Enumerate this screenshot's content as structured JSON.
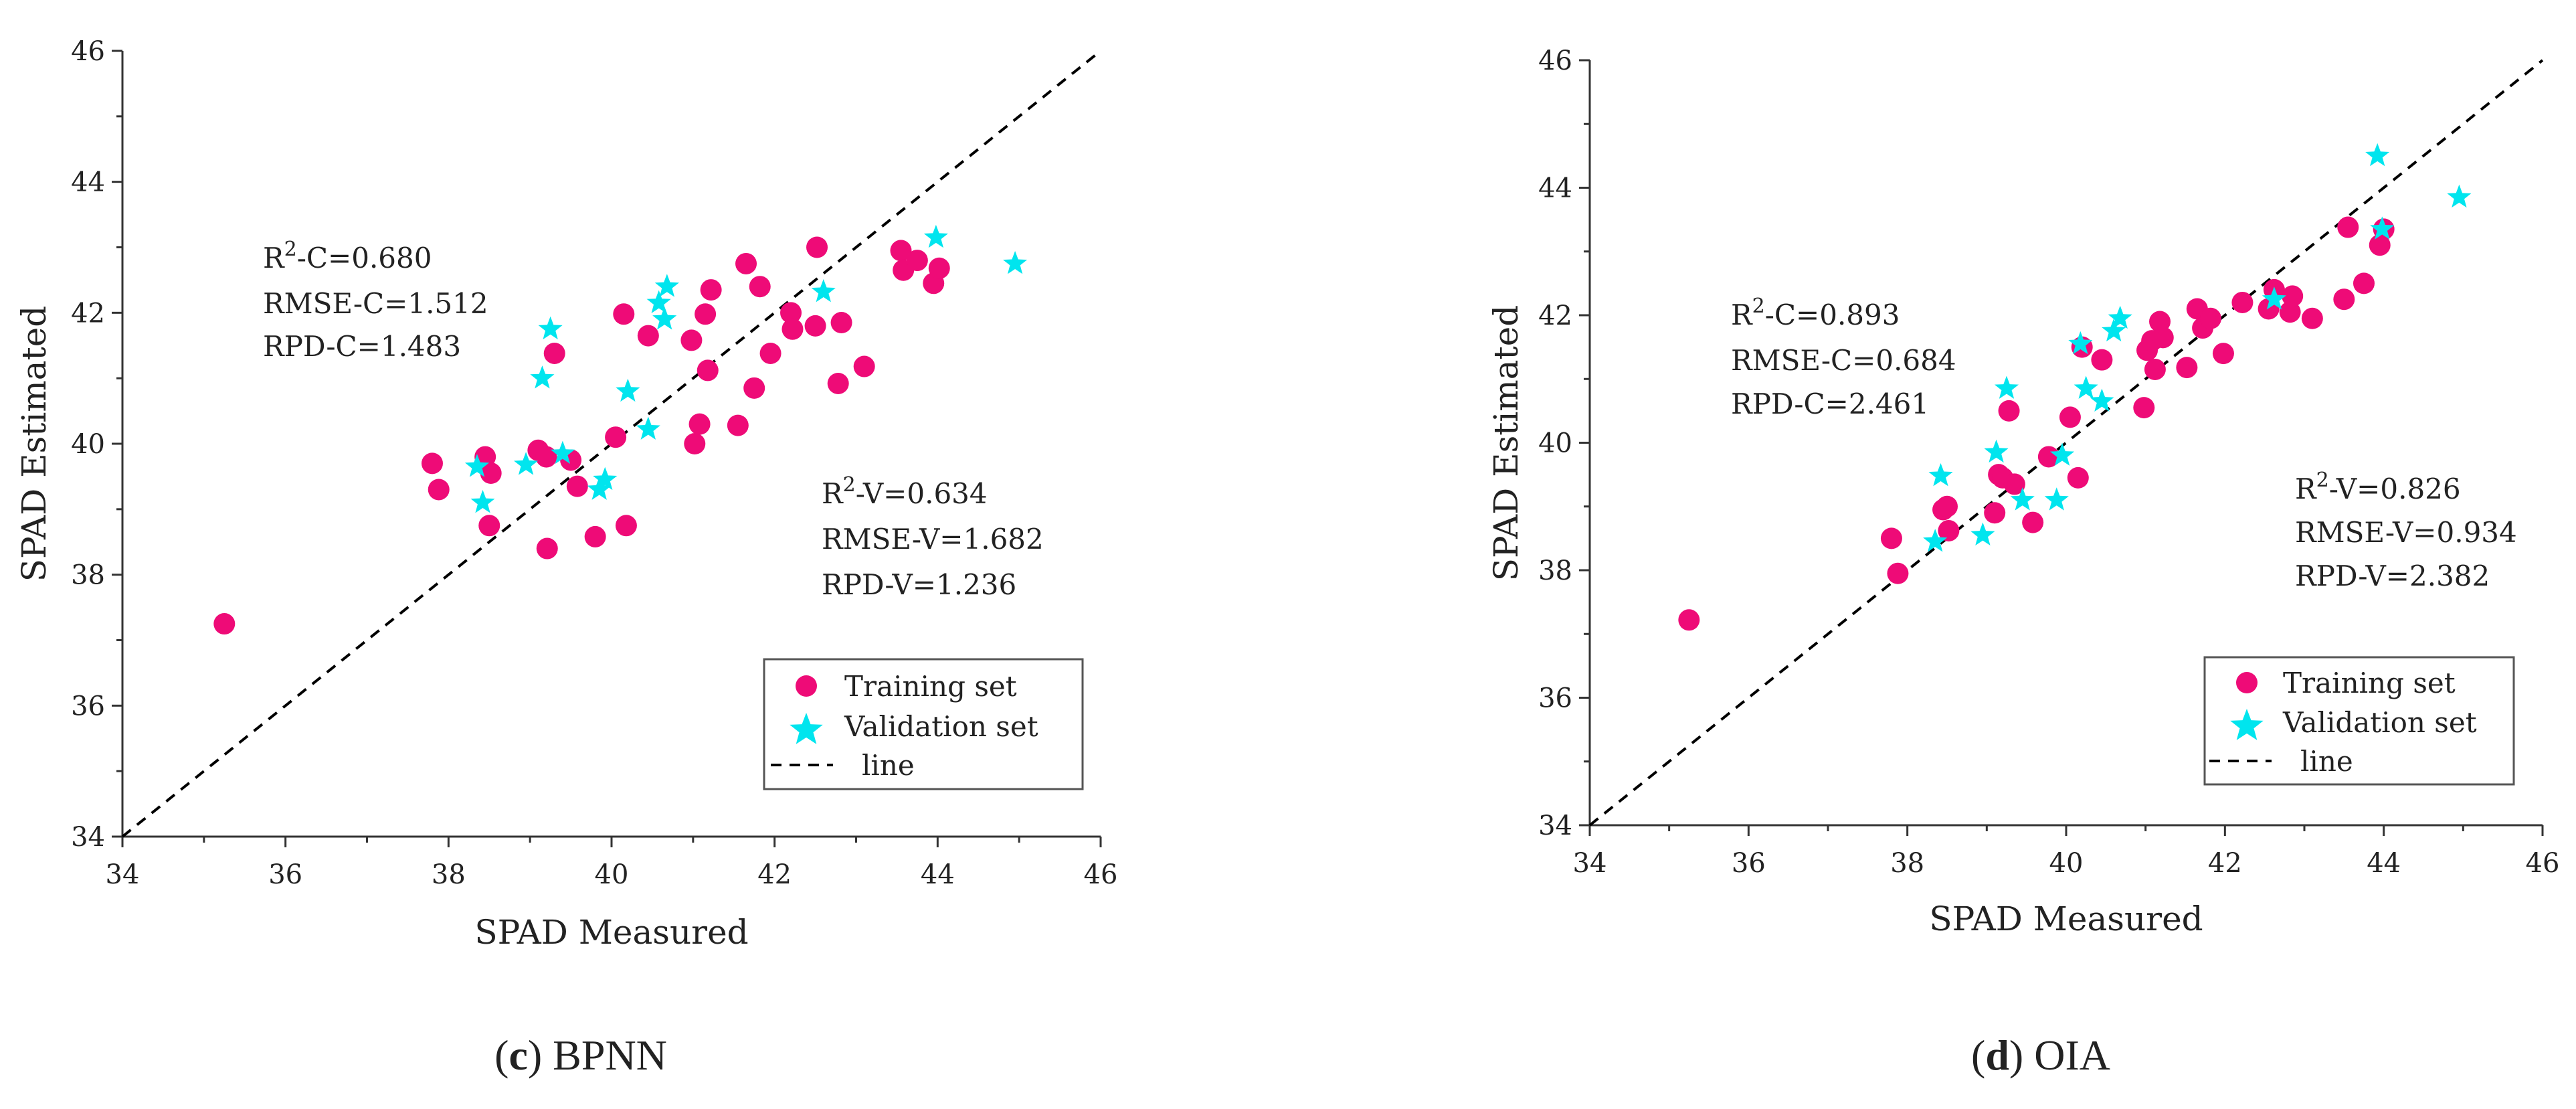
{
  "colors": {
    "training": "#ee0b77",
    "validation": "#00e5ee",
    "line": "#000000",
    "axis": "#333333"
  },
  "chart_data": [
    {
      "type": "scatter",
      "panel_letter": "c",
      "caption": "BPNN",
      "xlabel": "SPAD Measured",
      "ylabel": "SPAD Estimated",
      "xlim": [
        34,
        46
      ],
      "ylim": [
        34,
        46
      ],
      "x_ticks": [
        "34",
        "36",
        "38",
        "40",
        "42",
        "44",
        "46"
      ],
      "y_ticks": [
        "34",
        "36",
        "38",
        "40",
        "42",
        "44",
        "46"
      ],
      "stats_c": {
        "r2_prefix": "R",
        "r2_sup": "2",
        "r2_rest": "-C=0.680",
        "rmse": "RMSE-C=1.512",
        "rpd": "RPD-C=1.483"
      },
      "stats_v": {
        "r2_prefix": "R",
        "r2_sup": "2",
        "r2_rest": "-V=0.634",
        "rmse": "RMSE-V=1.682",
        "rpd": "RPD-V=1.236"
      },
      "legend": {
        "training": "Training set",
        "validation": "Validation set",
        "line": "line",
        "position": "bottom-right"
      },
      "series": [
        {
          "name": "Training set",
          "x": [
            35.25,
            37.8,
            37.88,
            38.45,
            38.5,
            38.52,
            39.1,
            39.2,
            39.21,
            39.3,
            39.5,
            39.58,
            39.8,
            40.05,
            40.15,
            40.18,
            40.45,
            40.98,
            41.02,
            41.08,
            41.15,
            41.18,
            41.22,
            41.55,
            41.65,
            41.75,
            41.82,
            41.95,
            42.2,
            42.22,
            42.5,
            42.52,
            42.78,
            42.82,
            43.1,
            43.55,
            43.58,
            43.75,
            43.95,
            44.02
          ],
          "y": [
            37.25,
            39.7,
            39.3,
            39.8,
            38.75,
            39.55,
            39.9,
            39.8,
            38.4,
            41.38,
            39.75,
            39.35,
            38.58,
            40.1,
            41.98,
            38.75,
            41.65,
            41.58,
            40.0,
            40.3,
            41.98,
            41.12,
            42.35,
            40.28,
            42.75,
            40.85,
            42.4,
            41.38,
            42.0,
            41.75,
            41.8,
            43.0,
            40.92,
            41.85,
            41.18,
            42.95,
            42.65,
            42.8,
            42.45,
            42.68
          ]
        },
        {
          "name": "Validation set",
          "x": [
            38.35,
            38.42,
            38.95,
            39.15,
            39.25,
            39.4,
            39.85,
            39.92,
            40.2,
            40.45,
            40.58,
            40.65,
            40.68,
            42.6,
            43.98,
            44.95
          ],
          "y": [
            39.65,
            39.1,
            39.68,
            41.0,
            41.75,
            39.85,
            39.3,
            39.45,
            40.8,
            40.22,
            42.15,
            41.9,
            42.4,
            42.32,
            43.15,
            42.75
          ]
        }
      ]
    },
    {
      "type": "scatter",
      "panel_letter": "d",
      "caption": "OIA",
      "xlabel": "SPAD Measured",
      "ylabel": "SPAD Estimated",
      "xlim": [
        34,
        46
      ],
      "ylim": [
        34,
        46
      ],
      "x_ticks": [
        "34",
        "36",
        "38",
        "40",
        "42",
        "44",
        "46"
      ],
      "y_ticks": [
        "34",
        "36",
        "38",
        "40",
        "42",
        "44",
        "46"
      ],
      "stats_c": {
        "r2_prefix": "R",
        "r2_sup": "2",
        "r2_rest": "-C=0.893",
        "rmse": "RMSE-C=0.684",
        "rpd": "RPD-C=2.461"
      },
      "stats_v": {
        "r2_prefix": "R",
        "r2_sup": "2",
        "r2_rest": "-V=0.826",
        "rmse": "RMSE-V=0.934",
        "rpd": "RPD-V=2.382"
      },
      "legend": {
        "training": "Training set",
        "validation": "Validation set",
        "line": "line",
        "position": "bottom-right"
      },
      "series": [
        {
          "name": "Training set",
          "x": [
            35.25,
            37.8,
            37.88,
            38.45,
            38.5,
            38.52,
            39.1,
            39.15,
            39.2,
            39.28,
            39.35,
            39.58,
            39.78,
            40.05,
            40.15,
            40.2,
            40.45,
            40.98,
            41.02,
            41.08,
            41.12,
            41.18,
            41.22,
            41.52,
            41.65,
            41.72,
            41.82,
            41.98,
            42.22,
            42.55,
            42.62,
            42.82,
            42.85,
            43.1,
            43.5,
            43.55,
            43.75,
            43.95,
            44.0
          ],
          "y": [
            37.22,
            38.5,
            37.95,
            38.95,
            39.0,
            38.62,
            38.9,
            39.5,
            39.45,
            40.5,
            39.35,
            38.75,
            39.78,
            40.4,
            39.45,
            41.5,
            41.3,
            40.55,
            41.45,
            41.6,
            41.15,
            41.9,
            41.65,
            41.18,
            42.1,
            41.8,
            41.95,
            41.4,
            42.2,
            42.1,
            42.4,
            42.05,
            42.3,
            41.95,
            42.25,
            43.38,
            42.5,
            43.1,
            43.35
          ]
        },
        {
          "name": "Validation set",
          "x": [
            38.35,
            38.42,
            38.95,
            39.12,
            39.25,
            39.45,
            39.88,
            39.95,
            40.18,
            40.25,
            40.45,
            40.6,
            40.68,
            42.62,
            43.92,
            43.98,
            44.95
          ],
          "y": [
            38.45,
            39.48,
            38.55,
            39.85,
            40.85,
            39.1,
            39.1,
            39.8,
            41.55,
            40.85,
            40.65,
            41.75,
            41.95,
            42.25,
            44.5,
            43.35,
            43.85
          ]
        }
      ]
    }
  ]
}
